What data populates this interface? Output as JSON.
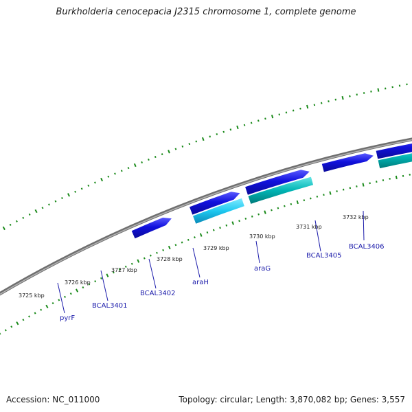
{
  "title": "Burkholderia cenocepacia J2315 chromosome 1, complete genome",
  "footer": {
    "accession": "Accession: NC_011000",
    "summary": "Topology: circular; Length: 3,870,082 bp; Genes: 3,557"
  },
  "colors": {
    "backbone": "#8c8c8c",
    "forward_gene": "#1111dd",
    "forward_gene_light": "#5a5aff",
    "cds": "#00b4b4",
    "cds_light": "#66e6e6",
    "tick": "#1a8a1a",
    "label": "#1a1aaa"
  },
  "kbp_ticks": [
    {
      "label": "3725 kbp"
    },
    {
      "label": "3726 kbp"
    },
    {
      "label": "3727 kbp"
    },
    {
      "label": "3728 kbp"
    },
    {
      "label": "3729 kbp"
    },
    {
      "label": "3730 kbp"
    },
    {
      "label": "3731 kbp"
    },
    {
      "label": "3732 kbp"
    }
  ],
  "gene_labels": [
    {
      "name": "pyrF"
    },
    {
      "name": "BCAL3401"
    },
    {
      "name": "BCAL3402"
    },
    {
      "name": "araH"
    },
    {
      "name": "araG"
    },
    {
      "name": "BCAL3405"
    },
    {
      "name": "BCAL3406"
    }
  ]
}
